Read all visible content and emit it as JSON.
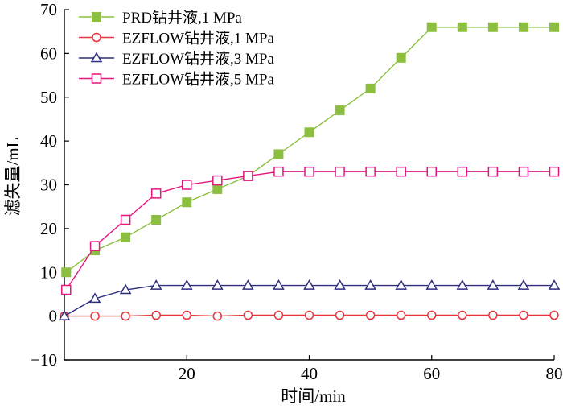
{
  "chart_data": {
    "type": "line",
    "title": "",
    "xlabel": "时间/min",
    "ylabel": "滤失量/mL",
    "xlim": [
      0,
      80
    ],
    "ylim": [
      -10,
      70
    ],
    "x_ticks": [
      20,
      40,
      60,
      80
    ],
    "y_ticks": [
      -10,
      0,
      10,
      20,
      30,
      40,
      50,
      60,
      70
    ],
    "grid": false,
    "legend_position": "top-left",
    "series": [
      {
        "name": "PRD钻井液,1 MPa",
        "color": "#8cbf3f",
        "marker": "filled-square",
        "x": [
          0.3,
          5,
          10,
          15,
          20,
          25,
          30,
          35,
          40,
          45,
          50,
          55,
          60,
          65,
          70,
          75,
          80
        ],
        "y": [
          10,
          15,
          18,
          22,
          26,
          29,
          32,
          37,
          42,
          47,
          52,
          59,
          66,
          66,
          66,
          66,
          66
        ]
      },
      {
        "name": "EZFLOW钻井液,1 MPa",
        "color": "#e8323c",
        "marker": "open-circle",
        "x": [
          0,
          5,
          10,
          15,
          20,
          25,
          30,
          35,
          40,
          45,
          50,
          55,
          60,
          65,
          70,
          75,
          80
        ],
        "y": [
          0,
          0,
          0,
          0.2,
          0.2,
          0,
          0.2,
          0.2,
          0.2,
          0.2,
          0.2,
          0.2,
          0.2,
          0.2,
          0.2,
          0.2,
          0.2
        ]
      },
      {
        "name": "EZFLOW钻井液,3 MPa",
        "color": "#2e2e7e",
        "marker": "open-triangle",
        "x": [
          0,
          5,
          10,
          15,
          20,
          25,
          30,
          35,
          40,
          45,
          50,
          55,
          60,
          65,
          70,
          75,
          80
        ],
        "y": [
          0,
          4,
          6,
          7,
          7,
          7,
          7,
          7,
          7,
          7,
          7,
          7,
          7,
          7,
          7,
          7,
          7
        ]
      },
      {
        "name": "EZFLOW钻井液,5 MPa",
        "color": "#e4157f",
        "marker": "open-square",
        "x": [
          0.3,
          5,
          10,
          15,
          20,
          25,
          30,
          35,
          40,
          45,
          50,
          55,
          60,
          65,
          70,
          75,
          80
        ],
        "y": [
          6,
          16,
          22,
          28,
          30,
          31,
          32,
          33,
          33,
          33,
          33,
          33,
          33,
          33,
          33,
          33,
          33
        ]
      }
    ]
  }
}
